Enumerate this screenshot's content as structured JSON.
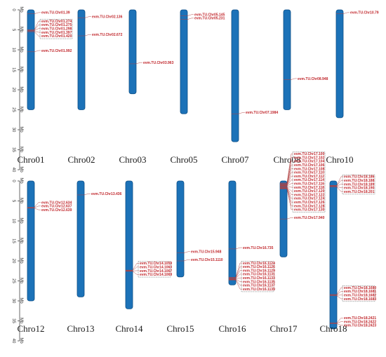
{
  "axis": {
    "unit": "Mb",
    "ticks": [
      "0",
      "5",
      "10",
      "15",
      "20",
      "25",
      "30",
      "35",
      "40"
    ],
    "max_mb": 40
  },
  "colors": {
    "chromosome": "#1c72b8",
    "chromosome_edge": "#0d4f86",
    "label": "#c0262b",
    "leader": "#b04040",
    "cluster_box": "#555555"
  },
  "rows": [
    {
      "chromosomes": [
        {
          "name": "Chro01",
          "length": 25,
          "genes": [
            {
              "label": "evm.TU.Chr01.39",
              "pos": 1.0
            },
            {
              "label": "evm.TU.Chr01.274",
              "pos": 5.0
            },
            {
              "label": "evm.TU.Chr01.275",
              "pos": 5.1
            },
            {
              "label": "evm.TU.Chr01.298",
              "pos": 5.2
            },
            {
              "label": "evm.TU.Chr01.397",
              "pos": 5.35
            },
            {
              "label": "evm.TU.Chr01.420",
              "pos": 5.5
            },
            {
              "label": "evm.TU.Chr01.992",
              "pos": 10.5
            }
          ]
        },
        {
          "name": "Chro02",
          "length": 25,
          "genes": [
            {
              "label": "evm.TU.Chr02.136",
              "pos": 2.0
            },
            {
              "label": "evm.TU.Chr02.672",
              "pos": 6.5
            }
          ]
        },
        {
          "name": "Chro03",
          "length": 21,
          "genes": [
            {
              "label": "evm.TU.Chr03.963",
              "pos": 13.5
            }
          ]
        },
        {
          "name": "Chro05",
          "length": 26,
          "genes": [
            {
              "label": "evm.TU.Chr05.145",
              "pos": 1.5
            },
            {
              "label": "evm.TU.Chr05.231",
              "pos": 2.4
            }
          ]
        },
        {
          "name": "Chro07",
          "length": 33,
          "genes": [
            {
              "label": "evm.TU.Chr07.1984",
              "pos": 26.0
            }
          ]
        },
        {
          "name": "Chro08",
          "length": 25,
          "genes": [
            {
              "label": "evm.TU.Chr08.948",
              "pos": 17.5
            }
          ]
        },
        {
          "name": "Chro10",
          "length": 27,
          "genes": [
            {
              "label": "evm.TU.Chr10.79",
              "pos": 1.0
            }
          ]
        }
      ]
    },
    {
      "chromosomes": [
        {
          "name": "Chro12",
          "length": 30,
          "genes": [
            {
              "label": "evm.TU.Chr12.634",
              "pos": 6.6
            },
            {
              "label": "evm.TU.Chr12.637",
              "pos": 6.7
            },
            {
              "label": "evm.TU.Chr12.639",
              "pos": 6.8
            }
          ]
        },
        {
          "name": "Chro13",
          "length": 29,
          "genes": [
            {
              "label": "evm.TU.Chr13.436",
              "pos": 3.5
            }
          ]
        },
        {
          "name": "Chro14",
          "length": 32,
          "genes": [
            {
              "label": "evm.TU.Chr14.1059",
              "pos": 22.3
            },
            {
              "label": "evm.TU.Chr14.1063",
              "pos": 22.4
            },
            {
              "label": "evm.TU.Chr14.1067",
              "pos": 22.5
            },
            {
              "label": "evm.TU.Chr14.1069",
              "pos": 22.6
            }
          ]
        },
        {
          "name": "Chro15",
          "length": 24,
          "genes": [
            {
              "label": "evm.TU.Chr15.948",
              "pos": 18.0
            },
            {
              "label": "evm.TU.Chr15.1110",
              "pos": 20.0
            }
          ]
        },
        {
          "name": "Chro16",
          "length": 26,
          "genes": [
            {
              "label": "evm.TU.Chr16.735",
              "pos": 17.0
            },
            {
              "label": "evm.TU.Chr16.1124",
              "pos": 24.1
            },
            {
              "label": "evm.TU.Chr16.1126",
              "pos": 24.2
            },
            {
              "label": "evm.TU.Chr16.1129",
              "pos": 24.3
            },
            {
              "label": "evm.TU.Chr16.1131",
              "pos": 24.4
            },
            {
              "label": "evm.TU.Chr16.1133",
              "pos": 24.5
            },
            {
              "label": "evm.TU.Chr16.1135",
              "pos": 24.6
            },
            {
              "label": "evm.TU.Chr16.1137",
              "pos": 24.7
            },
            {
              "label": "evm.TU.Chr16.1139",
              "pos": 24.8
            }
          ]
        },
        {
          "name": "Chro17",
          "length": 19,
          "genes": [
            {
              "label": "evm.TU.Chr17.100",
              "pos": 0.5
            },
            {
              "label": "evm.TU.Chr17.102",
              "pos": 0.6
            },
            {
              "label": "evm.TU.Chr17.104",
              "pos": 0.7
            },
            {
              "label": "evm.TU.Chr17.106",
              "pos": 0.8
            },
            {
              "label": "evm.TU.Chr17.108",
              "pos": 0.9
            },
            {
              "label": "evm.TU.Chr17.110",
              "pos": 1.0
            },
            {
              "label": "evm.TU.Chr17.112",
              "pos": 1.1
            },
            {
              "label": "evm.TU.Chr17.114",
              "pos": 1.2
            },
            {
              "label": "evm.TU.Chr17.116",
              "pos": 1.3
            },
            {
              "label": "evm.TU.Chr17.118",
              "pos": 1.4
            },
            {
              "label": "evm.TU.Chr17.120",
              "pos": 1.5
            },
            {
              "label": "evm.TU.Chr17.122",
              "pos": 1.6
            },
            {
              "label": "evm.TU.Chr17.124",
              "pos": 1.7
            },
            {
              "label": "evm.TU.Chr17.126",
              "pos": 1.8
            },
            {
              "label": "evm.TU.Chr17.128",
              "pos": 1.9
            },
            {
              "label": "evm.TU.Chr17.130",
              "pos": 2.0
            },
            {
              "label": "evm.TU.Chr17.940",
              "pos": 9.5
            }
          ]
        },
        {
          "name": "Chro18",
          "length": 37,
          "genes": [
            {
              "label": "evm.TU.Chr18.186",
              "pos": 1.1
            },
            {
              "label": "evm.TU.Chr18.188",
              "pos": 1.2
            },
            {
              "label": "evm.TU.Chr18.189",
              "pos": 1.3
            },
            {
              "label": "evm.TU.Chr18.190",
              "pos": 1.4
            },
            {
              "label": "evm.TU.Chr18.201",
              "pos": 1.5
            },
            {
              "label": "evm.TU.Chr18.1680",
              "pos": 28.4
            },
            {
              "label": "evm.TU.Chr18.1681",
              "pos": 28.5
            },
            {
              "label": "evm.TU.Chr18.1682",
              "pos": 28.6
            },
            {
              "label": "evm.TU.Chr18.1683",
              "pos": 28.7
            },
            {
              "label": "evm.TU.Chr18.2421",
              "pos": 35.5
            },
            {
              "label": "evm.TU.Chr18.2422",
              "pos": 35.6
            },
            {
              "label": "evm.TU.Chr18.2423",
              "pos": 35.7
            }
          ]
        }
      ]
    }
  ]
}
